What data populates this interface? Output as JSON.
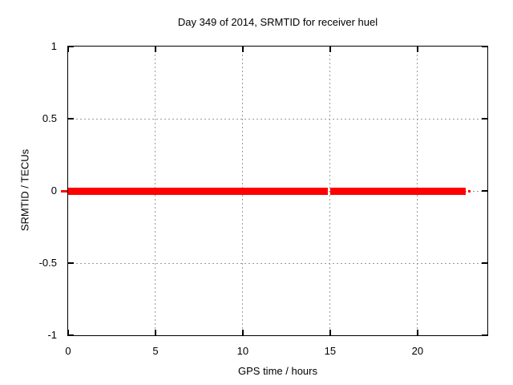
{
  "page": {
    "background": "#ffffff"
  },
  "chart_data": {
    "type": "line",
    "title": "Day 349 of 2014, SRMTID for receiver huel",
    "xlabel": "GPS time / hours",
    "ylabel": "SRMTID / TECUs",
    "xlim": [
      0,
      24
    ],
    "ylim": [
      -1,
      1
    ],
    "xticks": [
      0,
      5,
      10,
      15,
      20
    ],
    "yticks": [
      -1,
      -0.5,
      0,
      0.5,
      1
    ],
    "grid": true,
    "grid_color": "#9a9a9a",
    "border_color": "#000000",
    "tick_color": "#000000",
    "legend": "none",
    "series": [
      {
        "name": "SRMTID",
        "color": "#ff0000",
        "y_value": 0,
        "x_start": 0,
        "x_end": 23.0,
        "segments": [
          {
            "x1": -0.4,
            "x2": -0.05,
            "y": 0,
            "lw": 3
          },
          {
            "x1": 0,
            "x2": 14.85,
            "y": 0,
            "lw": 9
          },
          {
            "x1": 15.02,
            "x2": 22.78,
            "y": 0,
            "lw": 9
          },
          {
            "x1": 22.9,
            "x2": 23.05,
            "y": 0,
            "lw": 3
          }
        ]
      }
    ]
  }
}
